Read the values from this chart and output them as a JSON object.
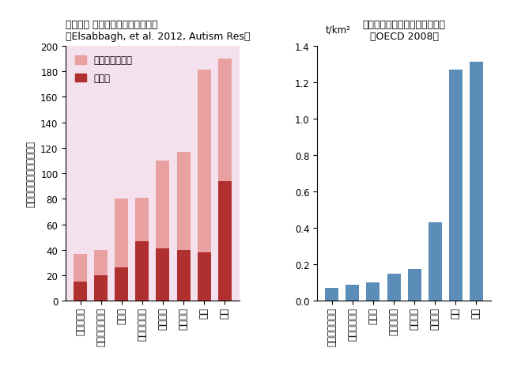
{
  "left_title1": "自閉症、 広汎性発達障害の有病率",
  "left_title2": "（Elsabbagh, et al. 2012, Autism Res）",
  "left_ylabel_line1": "有病率",
  "left_ylabel_line2": "１万人当りの人数",
  "left_categories": [
    "デンマーク",
    "オーストラリア",
    "カナダ",
    "スウェーデン",
    "アメリカ",
    "イギリス",
    "日本",
    "韓国"
  ],
  "autism_values": [
    15,
    20,
    26,
    47,
    41,
    40,
    38,
    94
  ],
  "pdd_values": [
    22,
    20,
    54,
    34,
    69,
    77,
    143,
    96
  ],
  "autism_color": "#b03030",
  "pdd_color": "#e8a0a0",
  "left_ylim": [
    0,
    200
  ],
  "left_yticks": [
    0,
    20,
    40,
    60,
    80,
    100,
    120,
    140,
    160,
    180,
    200
  ],
  "left_bg": "#f5e0ee",
  "right_title1": "農地単位面積当たり農薬使用量",
  "right_title2": "（OECD 2008）",
  "right_ylabel": "t/km²",
  "right_categories": [
    "オーストラリア",
    "スウェーデン",
    "カナダ",
    "デンマーク",
    "アメリカ",
    "イギリス",
    "日本",
    "韓国"
  ],
  "pesticide_values": [
    0.07,
    0.09,
    0.1,
    0.15,
    0.175,
    0.43,
    1.27,
    1.31
  ],
  "pesticide_color": "#5b8db8",
  "right_ylim": [
    0,
    1.4
  ],
  "right_yticks": [
    0,
    0.2,
    0.4,
    0.6,
    0.8,
    1.0,
    1.2,
    1.4
  ],
  "legend_pdd": "広汎性発達障害",
  "legend_autism": "自閉症"
}
